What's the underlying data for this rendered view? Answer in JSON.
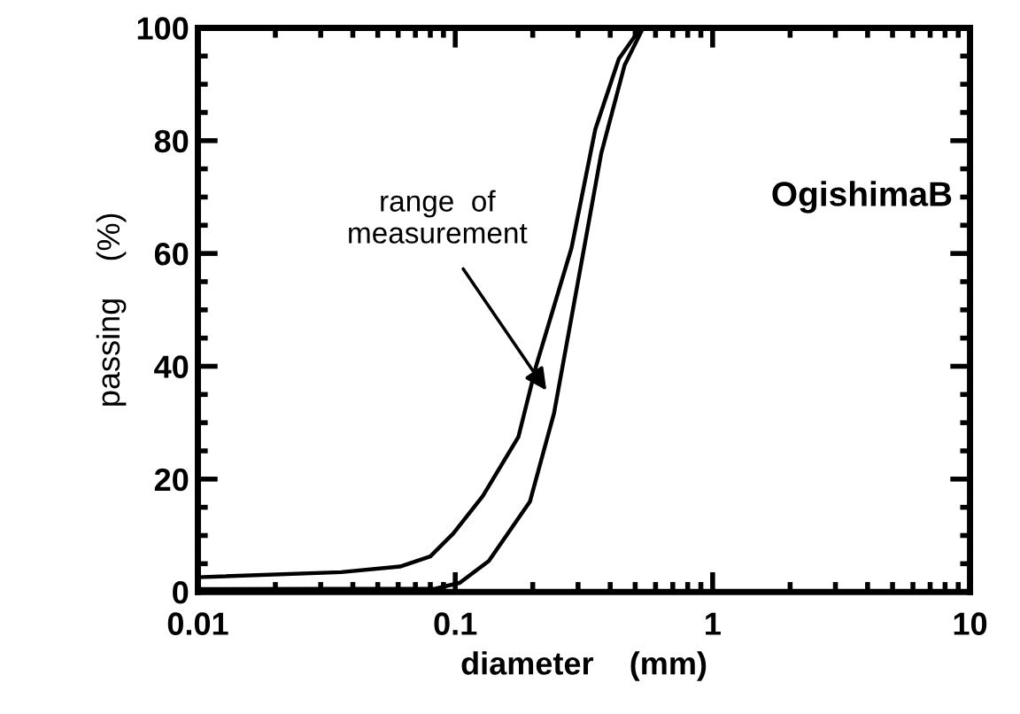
{
  "chart_data": {
    "type": "line",
    "xlabel": "diameter    (mm)",
    "ylabel": "passing    (%)",
    "log": "x",
    "xlim": [
      0.01,
      10
    ],
    "xticks": [
      0.01,
      0.1,
      1,
      10
    ],
    "ylim": [
      0,
      100
    ],
    "yticks": [
      0,
      20,
      40,
      60,
      80,
      100
    ],
    "grid": false,
    "legend": false,
    "marker": "none",
    "line_style": "solid",
    "series": [
      {
        "color": "#000000",
        "x": [
          0.01,
          0.036,
          0.061,
          0.08,
          0.098,
          0.128,
          0.176,
          0.206,
          0.283,
          0.35,
          0.432,
          0.52
        ],
        "values": [
          2.6,
          3.5,
          4.5,
          6.3,
          10.3,
          17,
          27.5,
          40,
          61,
          82,
          94.5,
          99.7
        ]
      },
      {
        "color": "#000000",
        "x": [
          0.01,
          0.084,
          0.104,
          0.135,
          0.195,
          0.242,
          0.299,
          0.369,
          0.455,
          0.533
        ],
        "values": [
          0.5,
          0.6,
          1.6,
          5.5,
          16,
          31.7,
          54.7,
          77.7,
          93.4,
          99.7
        ]
      }
    ],
    "annotations": [
      "range  of\nmeasurement",
      "OgishimaB"
    ]
  }
}
